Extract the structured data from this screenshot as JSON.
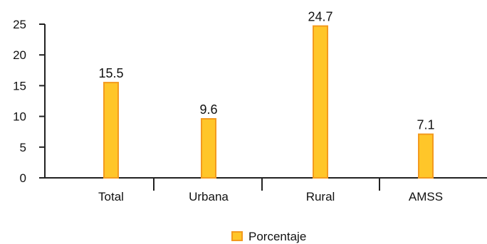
{
  "chart_data": {
    "type": "bar",
    "categories": [
      "Total",
      "Urbana",
      "Rural",
      "AMSS"
    ],
    "series": [
      {
        "name": "Porcentaje",
        "values": [
          15.5,
          9.6,
          24.7,
          7.1
        ]
      }
    ],
    "data_labels": [
      "15.5",
      "9.6",
      "24.7",
      "7.1"
    ],
    "ylim": [
      0,
      25
    ],
    "yticks": [
      0,
      5,
      10,
      15,
      20,
      25
    ],
    "grid": false,
    "legend_position": "bottom-center",
    "colors": {
      "bar_fill": "#FFC629",
      "bar_stroke": "#F39A1E",
      "axis": "#222222"
    }
  }
}
